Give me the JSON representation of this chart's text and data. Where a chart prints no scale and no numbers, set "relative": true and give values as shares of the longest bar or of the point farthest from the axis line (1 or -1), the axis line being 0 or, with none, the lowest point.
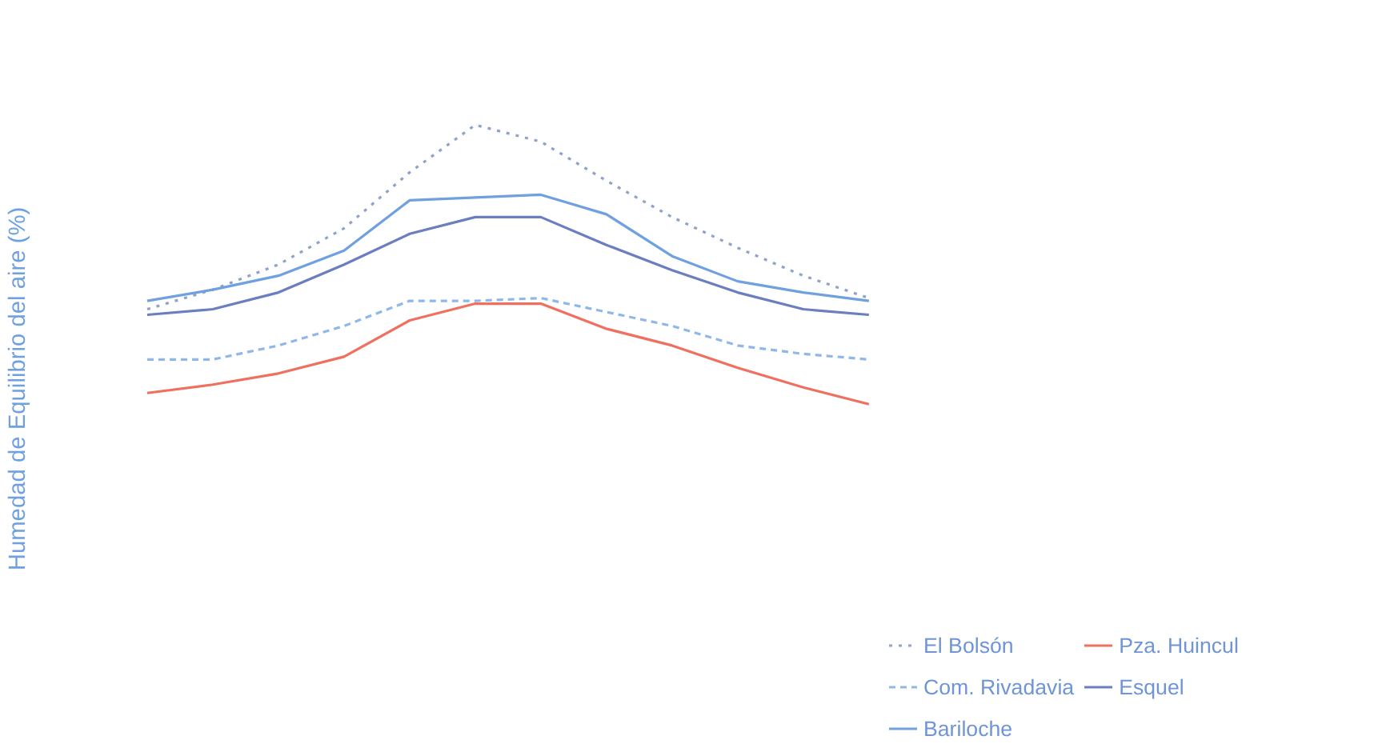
{
  "chart_data": {
    "type": "line",
    "relative": true,
    "ylabel": "Humedad de Equilibrio del aire (%)",
    "categories": [
      null,
      null,
      null,
      null,
      null,
      null,
      null,
      null,
      null,
      null,
      null,
      null
    ],
    "legend": "bottom right",
    "series": [
      {
        "name": "El Bolsón",
        "color": "#8fa3c8",
        "line_style": "dotted",
        "values": [
          0.34,
          0.41,
          0.5,
          0.63,
          0.83,
          1.0,
          0.94,
          0.8,
          0.67,
          0.56,
          0.46,
          0.38
        ]
      },
      {
        "name": "Com. Rivadavia",
        "color": "#8fb8e8",
        "line_style": "dashed",
        "values": [
          0.16,
          0.16,
          0.21,
          0.28,
          0.37,
          0.37,
          0.38,
          0.33,
          0.28,
          0.21,
          0.18,
          0.16
        ]
      },
      {
        "name": "Bariloche",
        "color": "#6fa0e0",
        "line_style": "solid",
        "values": [
          0.37,
          0.41,
          0.46,
          0.55,
          0.73,
          0.74,
          0.75,
          0.68,
          0.53,
          0.44,
          0.4,
          0.37
        ]
      },
      {
        "name": "Pza. Huincul",
        "color": "#f07060",
        "line_style": "solid",
        "values": [
          0.04,
          0.07,
          0.11,
          0.17,
          0.3,
          0.36,
          0.36,
          0.27,
          0.21,
          0.13,
          0.06,
          0.0
        ]
      },
      {
        "name": "Esquel",
        "color": "#6a7ec0",
        "line_style": "solid",
        "values": [
          0.32,
          0.34,
          0.4,
          0.5,
          0.61,
          0.67,
          0.67,
          0.57,
          0.48,
          0.4,
          0.34,
          0.32
        ]
      }
    ]
  }
}
